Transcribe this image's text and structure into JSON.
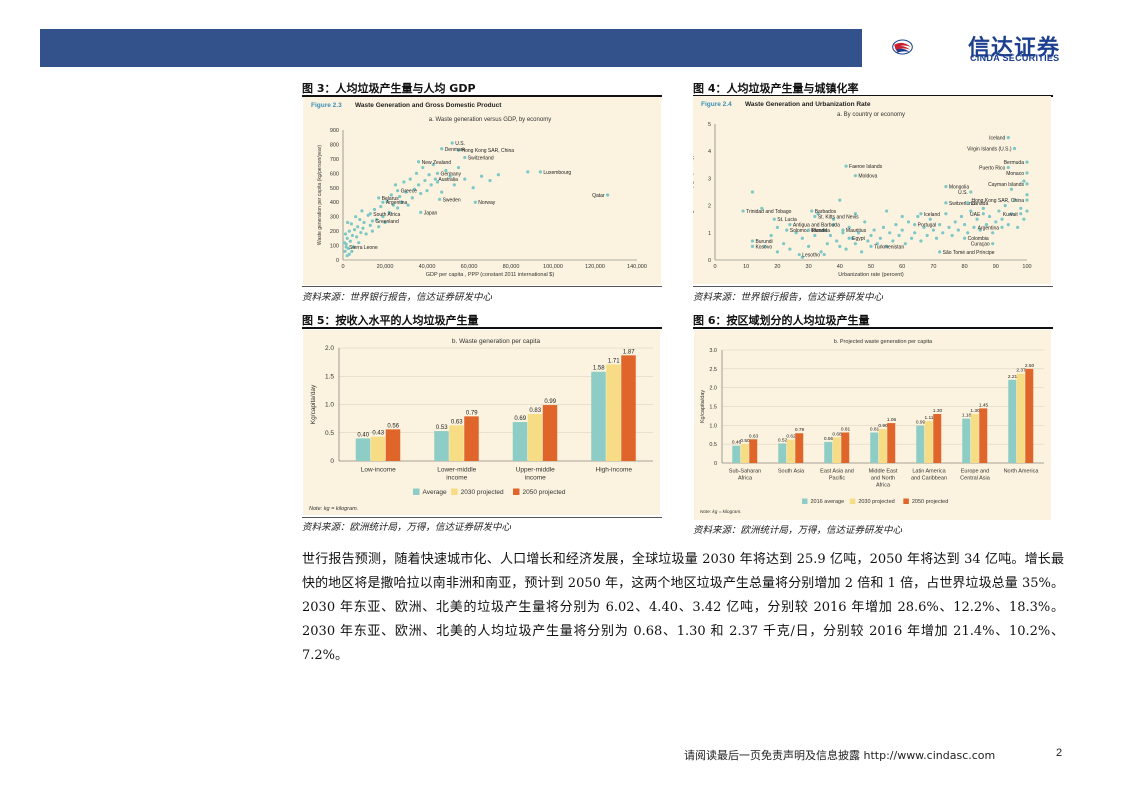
{
  "brand": {
    "name_cn": "信达证券",
    "name_en": "CINDA SECURITIES",
    "colors": {
      "header_bar": "#33518a",
      "logo_blue": "#1c3f8f",
      "logo_red": "#c8202f",
      "figure_bg": "#fbf3df"
    }
  },
  "figures": {
    "fig3": {
      "title": "图 3：人均垃圾产生量与人均 GDP",
      "source": "资料来源：世界银行报告，信达证券研发中心"
    },
    "fig4": {
      "title": "图 4：人均垃圾产生量与城镇化率",
      "source": "资料来源：世界银行报告，信达证券研发中心"
    },
    "fig5": {
      "title": "图 5：按收入水平的人均垃圾产生量",
      "source": "资料来源：欧洲统计局，万得，信达证券研发中心"
    },
    "fig6": {
      "title": "图 6：按区域划分的人均垃圾产生量",
      "source": "资料来源：欧洲统计局，万得，信达证券研发中心"
    }
  },
  "body_text": [
    "世行报告预测，随着快速城市化、人口增长和经济发展，全球垃圾量 2030 年将达到 25.9 亿吨，2050 年将达到 34 亿吨。增长最快的地区将是撒哈拉以南非洲和南亚，预计到 2050 年，这两个地区垃圾产生总量将分别增加 2 倍和 1 倍，占世界垃圾总量 35%。2030 年东亚、欧洲、北美的垃圾产生量将分别为 6.02、4.40、3.42 亿吨，分别较 2016 年增加 28.6%、12.2%、18.3%。2030 年东亚、欧洲、北美的人均垃圾产生量将分别为 0.68、1.30 和 2.37 千克/日，分别较 2016 年增加 21.4%、10.2%、7.2%。"
  ],
  "footer": {
    "disclaimer": "请阅读最后一页免责声明及信息披露 http://www.cindasc.com",
    "page": "2"
  },
  "chart_data": [
    {
      "id": "fig3",
      "type": "scatter",
      "figure_label": "Figure 2.3",
      "title": "Waste Generation and Gross Domestic Product",
      "subtitle": "a. Waste generation versus GDP, by economy",
      "xlabel": "GDP per capita , PPP (constant 2011 international $)",
      "ylabel": "Waste generation per capita (kg/person/year)",
      "xlim": [
        0,
        140000
      ],
      "ylim": [
        0,
        900
      ],
      "xticks": [
        "0",
        "20,000",
        "40,000",
        "60,000",
        "80,000",
        "100,000",
        "120,000",
        "140,000"
      ],
      "yticks": [
        "0",
        "100",
        "200",
        "300",
        "400",
        "500",
        "600",
        "700",
        "800",
        "900"
      ],
      "labeled_points": [
        {
          "label": "U.S.",
          "x": 52000,
          "y": 810
        },
        {
          "label": "Hong Kong SAR, China",
          "x": 55000,
          "y": 760
        },
        {
          "label": "Denmark",
          "x": 47000,
          "y": 770
        },
        {
          "label": "Switzerland",
          "x": 58000,
          "y": 710
        },
        {
          "label": "New Zealand",
          "x": 36000,
          "y": 680
        },
        {
          "label": "Germany",
          "x": 45000,
          "y": 600
        },
        {
          "label": "Luxembourg",
          "x": 94000,
          "y": 610
        },
        {
          "label": "Australia",
          "x": 44000,
          "y": 560
        },
        {
          "label": "Greece",
          "x": 26000,
          "y": 480
        },
        {
          "label": "Qatar",
          "x": 126000,
          "y": 450
        },
        {
          "label": "Belarus",
          "x": 17000,
          "y": 430
        },
        {
          "label": "Sweden",
          "x": 46000,
          "y": 420
        },
        {
          "label": "Argentina",
          "x": 19000,
          "y": 400
        },
        {
          "label": "Norway",
          "x": 63000,
          "y": 400
        },
        {
          "label": "South Africa",
          "x": 13000,
          "y": 320
        },
        {
          "label": "Japan",
          "x": 37000,
          "y": 330
        },
        {
          "label": "Greenland",
          "x": 14000,
          "y": 270
        },
        {
          "label": "Sierra Leone",
          "x": 1500,
          "y": 90
        }
      ],
      "points": [
        [
          1000,
          60
        ],
        [
          1500,
          110
        ],
        [
          2000,
          150
        ],
        [
          2500,
          80
        ],
        [
          3000,
          200
        ],
        [
          3500,
          130
        ],
        [
          4000,
          250
        ],
        [
          4500,
          170
        ],
        [
          5000,
          90
        ],
        [
          5500,
          210
        ],
        [
          6000,
          300
        ],
        [
          6500,
          160
        ],
        [
          7000,
          230
        ],
        [
          7500,
          120
        ],
        [
          8000,
          280
        ],
        [
          8500,
          190
        ],
        [
          9000,
          340
        ],
        [
          9500,
          220
        ],
        [
          10000,
          260
        ],
        [
          11000,
          180
        ],
        [
          12000,
          310
        ],
        [
          13000,
          240
        ],
        [
          14000,
          200
        ],
        [
          15000,
          350
        ],
        [
          16000,
          280
        ],
        [
          17000,
          230
        ],
        [
          18000,
          370
        ],
        [
          19000,
          300
        ],
        [
          20000,
          260
        ],
        [
          21000,
          410
        ],
        [
          22000,
          330
        ],
        [
          23000,
          450
        ],
        [
          24000,
          380
        ],
        [
          25000,
          520
        ],
        [
          26000,
          360
        ],
        [
          27000,
          440
        ],
        [
          28000,
          400
        ],
        [
          29000,
          540
        ],
        [
          30000,
          470
        ],
        [
          31000,
          380
        ],
        [
          32000,
          560
        ],
        [
          33000,
          430
        ],
        [
          34000,
          490
        ],
        [
          35000,
          600
        ],
        [
          36000,
          520
        ],
        [
          37000,
          460
        ],
        [
          38000,
          640
        ],
        [
          39000,
          550
        ],
        [
          40000,
          480
        ],
        [
          41000,
          590
        ],
        [
          42000,
          520
        ],
        [
          43000,
          660
        ],
        [
          45000,
          540
        ],
        [
          47000,
          470
        ],
        [
          49000,
          620
        ],
        [
          51000,
          580
        ],
        [
          53000,
          520
        ],
        [
          55000,
          640
        ],
        [
          58000,
          560
        ],
        [
          62000,
          500
        ],
        [
          66000,
          580
        ],
        [
          70000,
          550
        ],
        [
          74000,
          590
        ],
        [
          88000,
          610
        ],
        [
          2000,
          30
        ],
        [
          3000,
          40
        ],
        [
          1200,
          180
        ],
        [
          2200,
          260
        ],
        [
          700,
          120
        ],
        [
          4200,
          60
        ]
      ]
    },
    {
      "id": "fig4",
      "type": "scatter",
      "figure_label": "Figure 2.4",
      "title": "Waste Generation and Urbanization Rate",
      "subtitle": "a. By country or economy",
      "xlabel": "Urbanization rate (percent)",
      "ylabel": "Waste generation (kg/capita/day)",
      "xlim": [
        0,
        100
      ],
      "ylim": [
        0,
        5
      ],
      "xticks": [
        "0",
        "10",
        "20",
        "30",
        "40",
        "50",
        "60",
        "70",
        "80",
        "90",
        "100"
      ],
      "yticks": [
        "0",
        "1",
        "2",
        "3",
        "4",
        "5"
      ],
      "labeled_points": [
        {
          "label": "Iceland",
          "x": 94,
          "y": 4.5
        },
        {
          "label": "Virgin Islands (U.S.)",
          "x": 96,
          "y": 4.1
        },
        {
          "label": "Bermuda",
          "x": 100,
          "y": 3.6
        },
        {
          "label": "Puerto Rico",
          "x": 94,
          "y": 3.4
        },
        {
          "label": "Monaco",
          "x": 100,
          "y": 3.2
        },
        {
          "label": "Faeroe Islands",
          "x": 42,
          "y": 3.45
        },
        {
          "label": "Moldova",
          "x": 45,
          "y": 3.1
        },
        {
          "label": "Mongolia",
          "x": 74,
          "y": 2.7
        },
        {
          "label": "Cayman Islands",
          "x": 100,
          "y": 2.8
        },
        {
          "label": "U.S.",
          "x": 82,
          "y": 2.5
        },
        {
          "label": "Switzerland",
          "x": 74,
          "y": 2.1
        },
        {
          "label": "Canada",
          "x": 81,
          "y": 2.1
        },
        {
          "label": "Hong Kong SAR, China",
          "x": 100,
          "y": 2.2
        },
        {
          "label": "Trinidad and Tobago",
          "x": 9,
          "y": 1.8
        },
        {
          "label": "Barbados",
          "x": 31,
          "y": 1.8
        },
        {
          "label": "Iceland",
          "x": 66,
          "y": 1.7
        },
        {
          "label": "UAE",
          "x": 86,
          "y": 1.7
        },
        {
          "label": "Kuwait",
          "x": 98,
          "y": 1.7
        },
        {
          "label": "St. Lucia",
          "x": 19,
          "y": 1.5
        },
        {
          "label": "St. Kitts and Nevis",
          "x": 32,
          "y": 1.6
        },
        {
          "label": "Antigua and Barbuda",
          "x": 24,
          "y": 1.3
        },
        {
          "label": "Portugal",
          "x": 64,
          "y": 1.3
        },
        {
          "label": "Argentina",
          "x": 92,
          "y": 1.2
        },
        {
          "label": "Solomon Islands",
          "x": 23,
          "y": 1.1
        },
        {
          "label": "Rwanda",
          "x": 30,
          "y": 1.1
        },
        {
          "label": "Mauritius",
          "x": 41,
          "y": 1.1
        },
        {
          "label": "Egypt",
          "x": 43,
          "y": 0.8
        },
        {
          "label": "Burundi",
          "x": 12,
          "y": 0.7
        },
        {
          "label": "Colombia",
          "x": 80,
          "y": 0.8
        },
        {
          "label": "Kosovo",
          "x": 12,
          "y": 0.5
        },
        {
          "label": "Turkmenistan",
          "x": 50,
          "y": 0.5
        },
        {
          "label": "Curaçao",
          "x": 89,
          "y": 0.6
        },
        {
          "label": "Lesotho",
          "x": 27,
          "y": 0.2
        },
        {
          "label": "São Tomé and Príncipe",
          "x": 72,
          "y": 0.3
        }
      ],
      "points": [
        [
          12,
          2.5
        ],
        [
          15,
          1.9
        ],
        [
          18,
          0.9
        ],
        [
          20,
          1.2
        ],
        [
          22,
          0.6
        ],
        [
          24,
          0.4
        ],
        [
          26,
          1.0
        ],
        [
          28,
          0.8
        ],
        [
          30,
          0.5
        ],
        [
          32,
          0.9
        ],
        [
          33,
          1.7
        ],
        [
          34,
          0.3
        ],
        [
          35,
          1.1
        ],
        [
          36,
          0.6
        ],
        [
          37,
          0.9
        ],
        [
          38,
          1.3
        ],
        [
          39,
          0.7
        ],
        [
          40,
          0.5
        ],
        [
          41,
          1.0
        ],
        [
          42,
          0.4
        ],
        [
          43,
          1.2
        ],
        [
          44,
          0.8
        ],
        [
          45,
          0.6
        ],
        [
          46,
          1.0
        ],
        [
          47,
          0.3
        ],
        [
          48,
          1.4
        ],
        [
          49,
          0.7
        ],
        [
          50,
          0.9
        ],
        [
          51,
          1.1
        ],
        [
          52,
          0.6
        ],
        [
          53,
          0.8
        ],
        [
          54,
          1.2
        ],
        [
          55,
          0.5
        ],
        [
          56,
          1.0
        ],
        [
          57,
          0.7
        ],
        [
          58,
          1.3
        ],
        [
          59,
          0.9
        ],
        [
          60,
          1.1
        ],
        [
          61,
          0.6
        ],
        [
          62,
          1.4
        ],
        [
          63,
          0.8
        ],
        [
          64,
          1.0
        ],
        [
          65,
          1.6
        ],
        [
          66,
          0.7
        ],
        [
          67,
          1.2
        ],
        [
          68,
          0.9
        ],
        [
          69,
          1.5
        ],
        [
          70,
          1.1
        ],
        [
          71,
          0.8
        ],
        [
          72,
          1.3
        ],
        [
          73,
          1.0
        ],
        [
          74,
          1.7
        ],
        [
          75,
          1.2
        ],
        [
          76,
          0.9
        ],
        [
          77,
          1.4
        ],
        [
          78,
          1.1
        ],
        [
          79,
          1.6
        ],
        [
          80,
          1.3
        ],
        [
          81,
          1.0
        ],
        [
          82,
          1.8
        ],
        [
          83,
          1.2
        ],
        [
          84,
          1.5
        ],
        [
          85,
          1.1
        ],
        [
          86,
          1.9
        ],
        [
          87,
          1.3
        ],
        [
          88,
          1.6
        ],
        [
          89,
          1.0
        ],
        [
          90,
          1.4
        ],
        [
          91,
          1.8
        ],
        [
          92,
          1.5
        ],
        [
          93,
          2.0
        ],
        [
          94,
          1.3
        ],
        [
          95,
          1.7
        ],
        [
          96,
          2.2
        ],
        [
          97,
          1.2
        ],
        [
          98,
          1.9
        ],
        [
          99,
          1.5
        ],
        [
          100,
          1.8
        ],
        [
          40,
          2.2
        ],
        [
          38,
          1.5
        ],
        [
          45,
          1.7
        ],
        [
          55,
          1.8
        ],
        [
          60,
          1.6
        ],
        [
          35,
          0.2
        ],
        [
          28,
          0.1
        ],
        [
          16,
          0.5
        ],
        [
          20,
          0.3
        ],
        [
          100,
          2.4
        ],
        [
          99,
          2.9
        ],
        [
          95,
          2.6
        ]
      ]
    },
    {
      "id": "fig5",
      "type": "bar",
      "title": "b. Waste generation per capita",
      "ylabel": "Kg/capita/day",
      "ylim": [
        0,
        2.0
      ],
      "yticks": [
        "0",
        "0.5",
        "1.0",
        "1.5",
        "2.0"
      ],
      "categories": [
        "Low-income",
        "Lower-middle income",
        "Upper-middle income",
        "High-income"
      ],
      "series": [
        {
          "name": "Average",
          "color": "#8ecdc6",
          "values": [
            0.4,
            0.53,
            0.69,
            1.58
          ]
        },
        {
          "name": "2030 projected",
          "color": "#f6dc84",
          "values": [
            0.43,
            0.63,
            0.83,
            1.71
          ]
        },
        {
          "name": "2050 projected",
          "color": "#e0652a",
          "values": [
            0.56,
            0.79,
            0.99,
            1.87
          ]
        }
      ],
      "value_labels": [
        [
          "0.40",
          "0.53",
          "0.69",
          "1.58"
        ],
        [
          "0.43",
          "0.63",
          "0.83",
          "1.71"
        ],
        [
          "0.56",
          "0.79",
          "0.99",
          "1.87"
        ]
      ],
      "note": "Note: kg = kilogram.",
      "legend": "bottom"
    },
    {
      "id": "fig6",
      "type": "bar",
      "title": "b. Projected waste generation per capita",
      "ylabel": "Kg/capita/day",
      "ylim": [
        0,
        3.0
      ],
      "yticks": [
        "0",
        "0.5",
        "1.0",
        "1.5",
        "2.0",
        "2.5",
        "3.0"
      ],
      "categories": [
        "Sub-Saharan Africa",
        "South Asia",
        "East Asia and Pacific",
        "Middle East and North Africa",
        "Latin America and Caribbean",
        "Europe and Central Asia",
        "North America"
      ],
      "series": [
        {
          "name": "2016 average",
          "color": "#8ecdc6",
          "values": [
            0.46,
            0.52,
            0.56,
            0.81,
            0.99,
            1.18,
            2.21
          ]
        },
        {
          "name": "2030 projected",
          "color": "#f6dc84",
          "values": [
            0.5,
            0.62,
            0.68,
            0.9,
            1.11,
            1.3,
            2.37
          ]
        },
        {
          "name": "2050 projected",
          "color": "#e0652a",
          "values": [
            0.63,
            0.79,
            0.81,
            1.06,
            1.3,
            1.45,
            2.5
          ]
        }
      ],
      "value_labels": [
        [
          "0.46",
          "0.52",
          "0.56",
          "0.81",
          "0.99",
          "1.18",
          "2.21"
        ],
        [
          "0.50",
          "0.62",
          "0.68",
          "0.90",
          "1.11",
          "1.30",
          "2.37"
        ],
        [
          "0.63",
          "0.79",
          "0.81",
          "1.06",
          "1.30",
          "1.45",
          "2.50"
        ]
      ],
      "note": "Note: kg = kilogram.",
      "legend": "bottom"
    }
  ]
}
